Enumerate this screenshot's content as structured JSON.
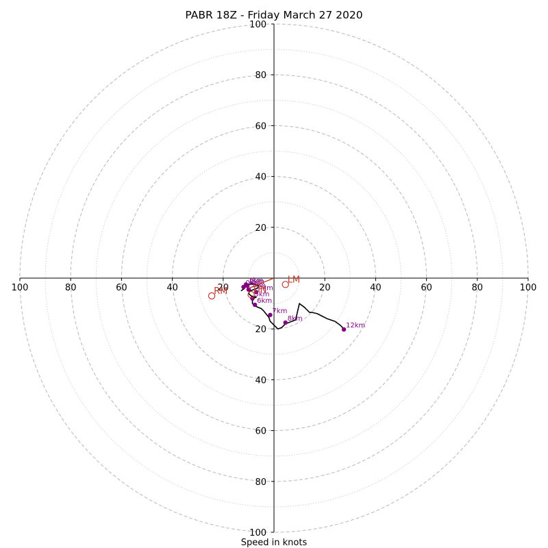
{
  "chart_data": {
    "type": "hodograph",
    "title": "PABR 18Z - Friday March 27 2020",
    "xlabel": "Speed in knots",
    "range": [
      -100,
      100
    ],
    "rings_dashed": [
      20,
      40,
      60,
      80,
      100
    ],
    "rings_dotted": [
      10,
      30,
      50,
      70,
      90
    ],
    "x_tick_labels": [
      "100",
      "80",
      "60",
      "40",
      "20",
      "20",
      "40",
      "60",
      "80",
      "100"
    ],
    "x_tick_values": [
      -100,
      -80,
      -60,
      -40,
      -20,
      20,
      40,
      60,
      80,
      100
    ],
    "y_tick_labels_upper": [
      "20",
      "40",
      "60",
      "80",
      "100"
    ],
    "y_tick_values_upper": [
      20,
      40,
      60,
      80,
      100
    ],
    "y_tick_labels_lower": [
      "20",
      "40",
      "60",
      "80",
      "100"
    ],
    "y_tick_values_lower": [
      -20,
      -40,
      -60,
      -80,
      -100
    ],
    "trace_color": "#000000",
    "height_marker_color": "#800080",
    "motion_color": "#c0392b",
    "trace": [
      [
        -13,
        -5
      ],
      [
        -11.5,
        -4
      ],
      [
        -11,
        -3
      ],
      [
        -10,
        -2.5
      ],
      [
        -8,
        -2.3
      ],
      [
        -7,
        -2.6
      ],
      [
        -6,
        -3
      ],
      [
        -6.5,
        -4
      ],
      [
        -8,
        -4.5
      ],
      [
        -9.5,
        -5
      ],
      [
        -10,
        -6
      ],
      [
        -9,
        -7
      ],
      [
        -7,
        -7.5
      ],
      [
        -8,
        -8
      ],
      [
        -8.5,
        -9
      ],
      [
        -8.5,
        -10
      ],
      [
        -7.5,
        -11
      ],
      [
        -5,
        -12
      ],
      [
        -4,
        -13
      ],
      [
        -2,
        -15.5
      ],
      [
        -1.5,
        -17
      ],
      [
        0,
        -18.5
      ],
      [
        1.5,
        -20
      ],
      [
        3,
        -19.5
      ],
      [
        4.5,
        -18
      ],
      [
        7,
        -17
      ],
      [
        8.5,
        -16.5
      ],
      [
        10,
        -10
      ],
      [
        12,
        -11.5
      ],
      [
        14,
        -13.5
      ],
      [
        15,
        -13.5
      ],
      [
        17,
        -14
      ],
      [
        19,
        -15
      ],
      [
        21,
        -16
      ],
      [
        24,
        -17
      ],
      [
        26,
        -18.5
      ],
      [
        28,
        -20.5
      ]
    ],
    "heights": [
      {
        "label": "0km",
        "x": -12,
        "y": -3.5
      },
      {
        "label": "1km",
        "x": -11,
        "y": -2.5
      },
      {
        "label": "2km",
        "x": -10.5,
        "y": -3
      },
      {
        "label": "3km",
        "x": -10,
        "y": -4.5
      },
      {
        "label": "4km",
        "x": -7,
        "y": -5.5
      },
      {
        "label": "5km",
        "x": -8.5,
        "y": -8
      },
      {
        "label": "6km",
        "x": -7.5,
        "y": -10.5
      },
      {
        "label": "7km",
        "x": -1.5,
        "y": -14.5
      },
      {
        "label": "8km",
        "x": 4.5,
        "y": -17.5
      },
      {
        "label": "12km",
        "x": 27.5,
        "y": -20.2
      }
    ],
    "storm_motions": [
      {
        "label": "LM",
        "x": 4.5,
        "y": -2.5
      },
      {
        "label": "RM",
        "x": -24.5,
        "y": -7
      },
      {
        "label": "DN",
        "x": -9,
        "y": -6.5
      }
    ],
    "mean_wind_vector": {
      "x0": 0,
      "y0": 0,
      "x1": -10,
      "y1": -4
    }
  }
}
